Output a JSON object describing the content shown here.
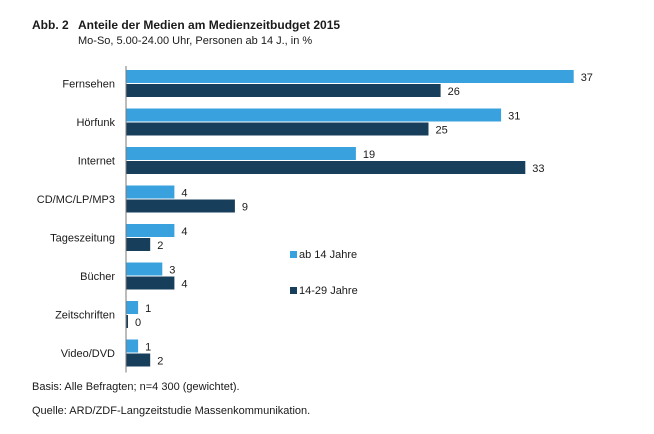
{
  "figure": {
    "number_label": "Abb. 2",
    "title": "Anteile der Medien am Medienzeitbudget 2015",
    "subtitle": "Mo-So, 5.00-24.00 Uhr, Personen ab 14 J., in %"
  },
  "chart_data": {
    "type": "bar",
    "orientation": "horizontal",
    "categories": [
      "Fernsehen",
      "Hörfunk",
      "Internet",
      "CD/MC/LP/MP3",
      "Tageszeitung",
      "Bücher",
      "Zeitschriften",
      "Video/DVD"
    ],
    "series": [
      {
        "name": "ab 14 Jahre",
        "color": "#3aa1df",
        "values": [
          37,
          31,
          19,
          4,
          4,
          3,
          1,
          1
        ]
      },
      {
        "name": "14-29 Jahre",
        "color": "#173f5c",
        "values": [
          26,
          25,
          33,
          9,
          2,
          4,
          0,
          2
        ]
      }
    ],
    "xlim": [
      0,
      40
    ],
    "grid": false,
    "legend_position": "right"
  },
  "footer": {
    "basis": "Basis: Alle Befragten; n=4 300 (gewichtet).",
    "source": "Quelle: ARD/ZDF-Langzeitstudie Massenkommunikation."
  }
}
